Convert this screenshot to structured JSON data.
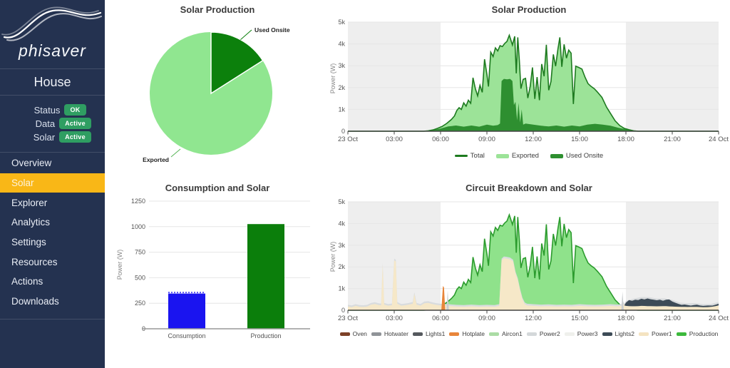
{
  "app": {
    "logo_text": "phisaver",
    "site_name": "House"
  },
  "sidebar": {
    "colors": {
      "background": "#243250",
      "accent": "#f9b717",
      "badge_green": "#2f9e62"
    },
    "status_rows": [
      {
        "label": "Status",
        "badge": "OK"
      },
      {
        "label": "Data",
        "badge": "Active"
      },
      {
        "label": "Solar",
        "badge": "Active"
      }
    ],
    "menu": [
      {
        "label": "Overview",
        "active": false
      },
      {
        "label": "Solar",
        "active": true
      },
      {
        "label": "Explorer",
        "active": false
      },
      {
        "label": "Analytics",
        "active": false
      },
      {
        "label": "Settings",
        "active": false
      },
      {
        "label": "Resources",
        "active": false
      },
      {
        "label": "Actions",
        "active": false
      },
      {
        "label": "Downloads",
        "active": false
      }
    ]
  },
  "chart_data": [
    {
      "id": "solar_pie",
      "type": "pie",
      "title": "Solar Production",
      "labels": [
        "Used Onsite",
        "Exported"
      ],
      "values_pct": [
        16,
        84
      ],
      "colors": [
        "#0c800c",
        "#90e690"
      ]
    },
    {
      "id": "solar_timeline",
      "type": "area",
      "title": "Solar Production",
      "ylabel": "Power (W)",
      "ylim": [
        0,
        5000
      ],
      "ytick_labels": [
        "0",
        "1k",
        "2k",
        "3k",
        "4k",
        "5k"
      ],
      "x_tick_hours": [
        0,
        3,
        6,
        9,
        12,
        15,
        18,
        21,
        24
      ],
      "x_tick_labels": [
        "23 Oct",
        "03:00",
        "06:00",
        "09:00",
        "12:00",
        "15:00",
        "18:00",
        "21:00",
        "24 Oct"
      ],
      "night_shading_hours": [
        [
          0,
          6
        ],
        [
          18,
          24
        ]
      ],
      "legend": [
        {
          "name": "Total",
          "color": "#1d7a1f",
          "style": "line"
        },
        {
          "name": "Exported",
          "color": "#9ce398",
          "style": "bar"
        },
        {
          "name": "Used Onsite",
          "color": "#2e8f30",
          "style": "bar"
        }
      ],
      "series": {
        "total": [
          [
            0,
            0
          ],
          [
            4.9,
            0
          ],
          [
            5.2,
            20
          ],
          [
            5.5,
            60
          ],
          [
            5.8,
            130
          ],
          [
            6.1,
            220
          ],
          [
            6.4,
            360
          ],
          [
            6.7,
            540
          ],
          [
            6.9,
            700
          ],
          [
            7.05,
            950
          ],
          [
            7.2,
            1080
          ],
          [
            7.35,
            1000
          ],
          [
            7.5,
            1300
          ],
          [
            7.65,
            1150
          ],
          [
            7.8,
            1420
          ],
          [
            7.95,
            1280
          ],
          [
            8.1,
            2450
          ],
          [
            8.25,
            1950
          ],
          [
            8.4,
            1620
          ],
          [
            8.55,
            2100
          ],
          [
            8.7,
            1780
          ],
          [
            8.85,
            3300
          ],
          [
            9.0,
            2600
          ],
          [
            9.1,
            2050
          ],
          [
            9.25,
            3620
          ],
          [
            9.4,
            3420
          ],
          [
            9.55,
            3820
          ],
          [
            9.7,
            3680
          ],
          [
            9.85,
            3920
          ],
          [
            10.0,
            3880
          ],
          [
            10.15,
            4020
          ],
          [
            10.3,
            4120
          ],
          [
            10.45,
            4400
          ],
          [
            10.55,
            4180
          ],
          [
            10.65,
            3950
          ],
          [
            10.8,
            4350
          ],
          [
            10.9,
            2650
          ],
          [
            11.0,
            4300
          ],
          [
            11.1,
            3250
          ],
          [
            11.2,
            1950
          ],
          [
            11.35,
            2380
          ],
          [
            11.5,
            2420
          ],
          [
            11.65,
            1520
          ],
          [
            11.8,
            2050
          ],
          [
            11.95,
            2920
          ],
          [
            12.1,
            1480
          ],
          [
            12.25,
            2480
          ],
          [
            12.4,
            1420
          ],
          [
            12.55,
            3080
          ],
          [
            12.7,
            2520
          ],
          [
            12.85,
            3960
          ],
          [
            13.0,
            1880
          ],
          [
            13.15,
            2280
          ],
          [
            13.3,
            3520
          ],
          [
            13.45,
            2980
          ],
          [
            13.6,
            3780
          ],
          [
            13.72,
            4300
          ],
          [
            13.85,
            2950
          ],
          [
            14.0,
            3980
          ],
          [
            14.15,
            3350
          ],
          [
            14.3,
            3720
          ],
          [
            14.45,
            3580
          ],
          [
            14.6,
            1250
          ],
          [
            14.75,
            2980
          ],
          [
            14.95,
            2920
          ],
          [
            15.15,
            2850
          ],
          [
            15.35,
            2480
          ],
          [
            15.55,
            2180
          ],
          [
            15.75,
            2050
          ],
          [
            15.95,
            1950
          ],
          [
            16.15,
            1800
          ],
          [
            16.45,
            1550
          ],
          [
            16.75,
            1100
          ],
          [
            17.0,
            820
          ],
          [
            17.3,
            480
          ],
          [
            17.6,
            260
          ],
          [
            17.9,
            130
          ],
          [
            18.2,
            70
          ],
          [
            18.5,
            20
          ],
          [
            18.8,
            0
          ],
          [
            24,
            0
          ]
        ],
        "used_onsite": [
          [
            0,
            0
          ],
          [
            5.0,
            0
          ],
          [
            5.3,
            30
          ],
          [
            6.0,
            120
          ],
          [
            6.5,
            220
          ],
          [
            7.0,
            260
          ],
          [
            7.5,
            210
          ],
          [
            8.0,
            260
          ],
          [
            8.5,
            210
          ],
          [
            9.0,
            300
          ],
          [
            9.4,
            250
          ],
          [
            9.7,
            280
          ],
          [
            9.85,
            350
          ],
          [
            9.95,
            2300
          ],
          [
            10.1,
            2400
          ],
          [
            10.3,
            2380
          ],
          [
            10.5,
            2400
          ],
          [
            10.65,
            2300
          ],
          [
            10.75,
            1200
          ],
          [
            10.85,
            1350
          ],
          [
            10.95,
            500
          ],
          [
            11.05,
            1300
          ],
          [
            11.15,
            400
          ],
          [
            11.25,
            1000
          ],
          [
            11.35,
            300
          ],
          [
            11.5,
            350
          ],
          [
            12.0,
            300
          ],
          [
            12.5,
            250
          ],
          [
            13.0,
            220
          ],
          [
            13.5,
            260
          ],
          [
            14.0,
            210
          ],
          [
            14.5,
            260
          ],
          [
            15.0,
            220
          ],
          [
            15.5,
            300
          ],
          [
            16.0,
            340
          ],
          [
            16.5,
            300
          ],
          [
            17.0,
            250
          ],
          [
            17.5,
            160
          ],
          [
            18.0,
            90
          ],
          [
            18.4,
            40
          ],
          [
            18.7,
            0
          ],
          [
            24,
            0
          ]
        ]
      }
    },
    {
      "id": "consumption_bars",
      "type": "bar",
      "title": "Consumption and Solar",
      "ylabel": "Power (W)",
      "ylim": [
        0,
        1250
      ],
      "yticks": [
        0,
        250,
        500,
        750,
        1000,
        1250
      ],
      "categories": [
        "Consumption",
        "Production"
      ],
      "values": [
        345,
        1025
      ],
      "colors": [
        "#1a14f0",
        "#0b7e0b"
      ]
    },
    {
      "id": "circuit_breakdown",
      "type": "area",
      "title": "Circuit Breakdown and Solar",
      "ylabel": "Power (W)",
      "ylim": [
        0,
        5000
      ],
      "ytick_labels": [
        "0",
        "1k",
        "2k",
        "3k",
        "4k",
        "5k"
      ],
      "x_tick_hours": [
        0,
        3,
        6,
        9,
        12,
        15,
        18,
        21,
        24
      ],
      "x_tick_labels": [
        "23 Oct",
        "03:00",
        "06:00",
        "09:00",
        "12:00",
        "15:00",
        "18:00",
        "21:00",
        "24 Oct"
      ],
      "night_shading_hours": [
        [
          0,
          6
        ],
        [
          18,
          24
        ]
      ],
      "legend": [
        {
          "name": "Oven",
          "color": "#7d4128",
          "style": "bar"
        },
        {
          "name": "Hotwater",
          "color": "#909498",
          "style": "bar"
        },
        {
          "name": "Lights1",
          "color": "#55595e",
          "style": "bar"
        },
        {
          "name": "Hotplate",
          "color": "#e8853a",
          "style": "bar"
        },
        {
          "name": "Aircon1",
          "color": "#abdca5",
          "style": "bar"
        },
        {
          "name": "Power2",
          "color": "#d4d8da",
          "style": "bar"
        },
        {
          "name": "Power3",
          "color": "#eff0ec",
          "style": "bar"
        },
        {
          "name": "Lights2",
          "color": "#3d4b57",
          "style": "bar"
        },
        {
          "name": "Power1",
          "color": "#f4e3c1",
          "style": "bar"
        },
        {
          "name": "Production",
          "color": "#3cb93c",
          "style": "bar"
        }
      ],
      "series": {
        "power1": [
          [
            0,
            170
          ],
          [
            0.25,
            140
          ],
          [
            0.5,
            200
          ],
          [
            0.75,
            160
          ],
          [
            1.0,
            150
          ],
          [
            1.25,
            170
          ],
          [
            1.5,
            260
          ],
          [
            1.75,
            290
          ],
          [
            2.0,
            240
          ],
          [
            2.15,
            230
          ],
          [
            2.25,
            2100
          ],
          [
            2.35,
            260
          ],
          [
            2.6,
            210
          ],
          [
            2.85,
            230
          ],
          [
            3.0,
            2300
          ],
          [
            3.1,
            2250
          ],
          [
            3.2,
            300
          ],
          [
            3.45,
            210
          ],
          [
            3.7,
            230
          ],
          [
            3.95,
            260
          ],
          [
            4.2,
            300
          ],
          [
            4.3,
            750
          ],
          [
            4.45,
            260
          ],
          [
            4.7,
            210
          ],
          [
            4.95,
            320
          ],
          [
            5.2,
            340
          ],
          [
            5.45,
            290
          ],
          [
            5.7,
            250
          ],
          [
            6.0,
            220
          ],
          [
            6.5,
            200
          ],
          [
            7.0,
            170
          ],
          [
            7.5,
            160
          ],
          [
            8.0,
            180
          ],
          [
            8.5,
            160
          ],
          [
            9.0,
            170
          ],
          [
            9.5,
            160
          ],
          [
            9.8,
            200
          ],
          [
            9.95,
            2300
          ],
          [
            10.1,
            2400
          ],
          [
            10.3,
            2380
          ],
          [
            10.5,
            2350
          ],
          [
            10.7,
            2250
          ],
          [
            10.85,
            1700
          ],
          [
            11.0,
            1400
          ],
          [
            11.15,
            900
          ],
          [
            11.3,
            500
          ],
          [
            11.45,
            280
          ],
          [
            11.6,
            220
          ],
          [
            12.0,
            200
          ],
          [
            12.5,
            180
          ],
          [
            13.0,
            190
          ],
          [
            13.5,
            170
          ],
          [
            14.0,
            180
          ],
          [
            14.5,
            170
          ],
          [
            15.0,
            200
          ],
          [
            15.5,
            180
          ],
          [
            16.0,
            170
          ],
          [
            16.5,
            180
          ],
          [
            17.0,
            200
          ],
          [
            17.4,
            180
          ],
          [
            17.7,
            200
          ],
          [
            17.8,
            350
          ],
          [
            17.9,
            220
          ],
          [
            18.0,
            200
          ],
          [
            18.5,
            180
          ],
          [
            19.0,
            200
          ],
          [
            19.5,
            190
          ],
          [
            20.0,
            180
          ],
          [
            20.5,
            190
          ],
          [
            21.0,
            170
          ],
          [
            21.5,
            160
          ],
          [
            22.0,
            150
          ],
          [
            22.5,
            160
          ],
          [
            23.0,
            140
          ],
          [
            23.5,
            150
          ],
          [
            24,
            220
          ]
        ],
        "lights2": [
          [
            17.9,
            0
          ],
          [
            18.0,
            150
          ],
          [
            18.2,
            280
          ],
          [
            18.4,
            250
          ],
          [
            18.6,
            300
          ],
          [
            18.8,
            280
          ],
          [
            19.0,
            330
          ],
          [
            19.2,
            300
          ],
          [
            19.4,
            350
          ],
          [
            19.6,
            320
          ],
          [
            19.8,
            300
          ],
          [
            20.0,
            280
          ],
          [
            20.2,
            300
          ],
          [
            20.4,
            250
          ],
          [
            20.6,
            300
          ],
          [
            20.8,
            320
          ],
          [
            21.0,
            230
          ],
          [
            21.2,
            180
          ],
          [
            21.4,
            130
          ],
          [
            21.6,
            90
          ],
          [
            21.8,
            110
          ],
          [
            22.0,
            90
          ],
          [
            22.2,
            60
          ],
          [
            22.4,
            80
          ],
          [
            22.6,
            100
          ],
          [
            22.8,
            70
          ],
          [
            23.0,
            60
          ],
          [
            23.3,
            70
          ],
          [
            23.6,
            50
          ],
          [
            23.8,
            60
          ],
          [
            24,
            80
          ]
        ],
        "hotplate_spike": [
          [
            6.05,
            0
          ],
          [
            6.15,
            1120
          ],
          [
            6.22,
            1050
          ],
          [
            6.3,
            0
          ]
        ],
        "gray_spikes": [
          [
            [
              6.38,
              0
            ],
            [
              6.46,
              900
            ],
            [
              6.54,
              0
            ]
          ],
          [
            [
              17.7,
              0
            ],
            [
              17.78,
              860
            ],
            [
              17.86,
              0
            ]
          ]
        ],
        "gray_cap_offset_w": 80,
        "production_fill": "#8fe28b",
        "production_line": "#2b9b2d",
        "power1_fill": "#f6e8c8",
        "gray_cap_fill": "#d9dcde",
        "lights2_fill": "#3d4b57",
        "hotplate_fill": "#e8853a",
        "gray_spike_fill": "#c9cdcf"
      }
    }
  ]
}
